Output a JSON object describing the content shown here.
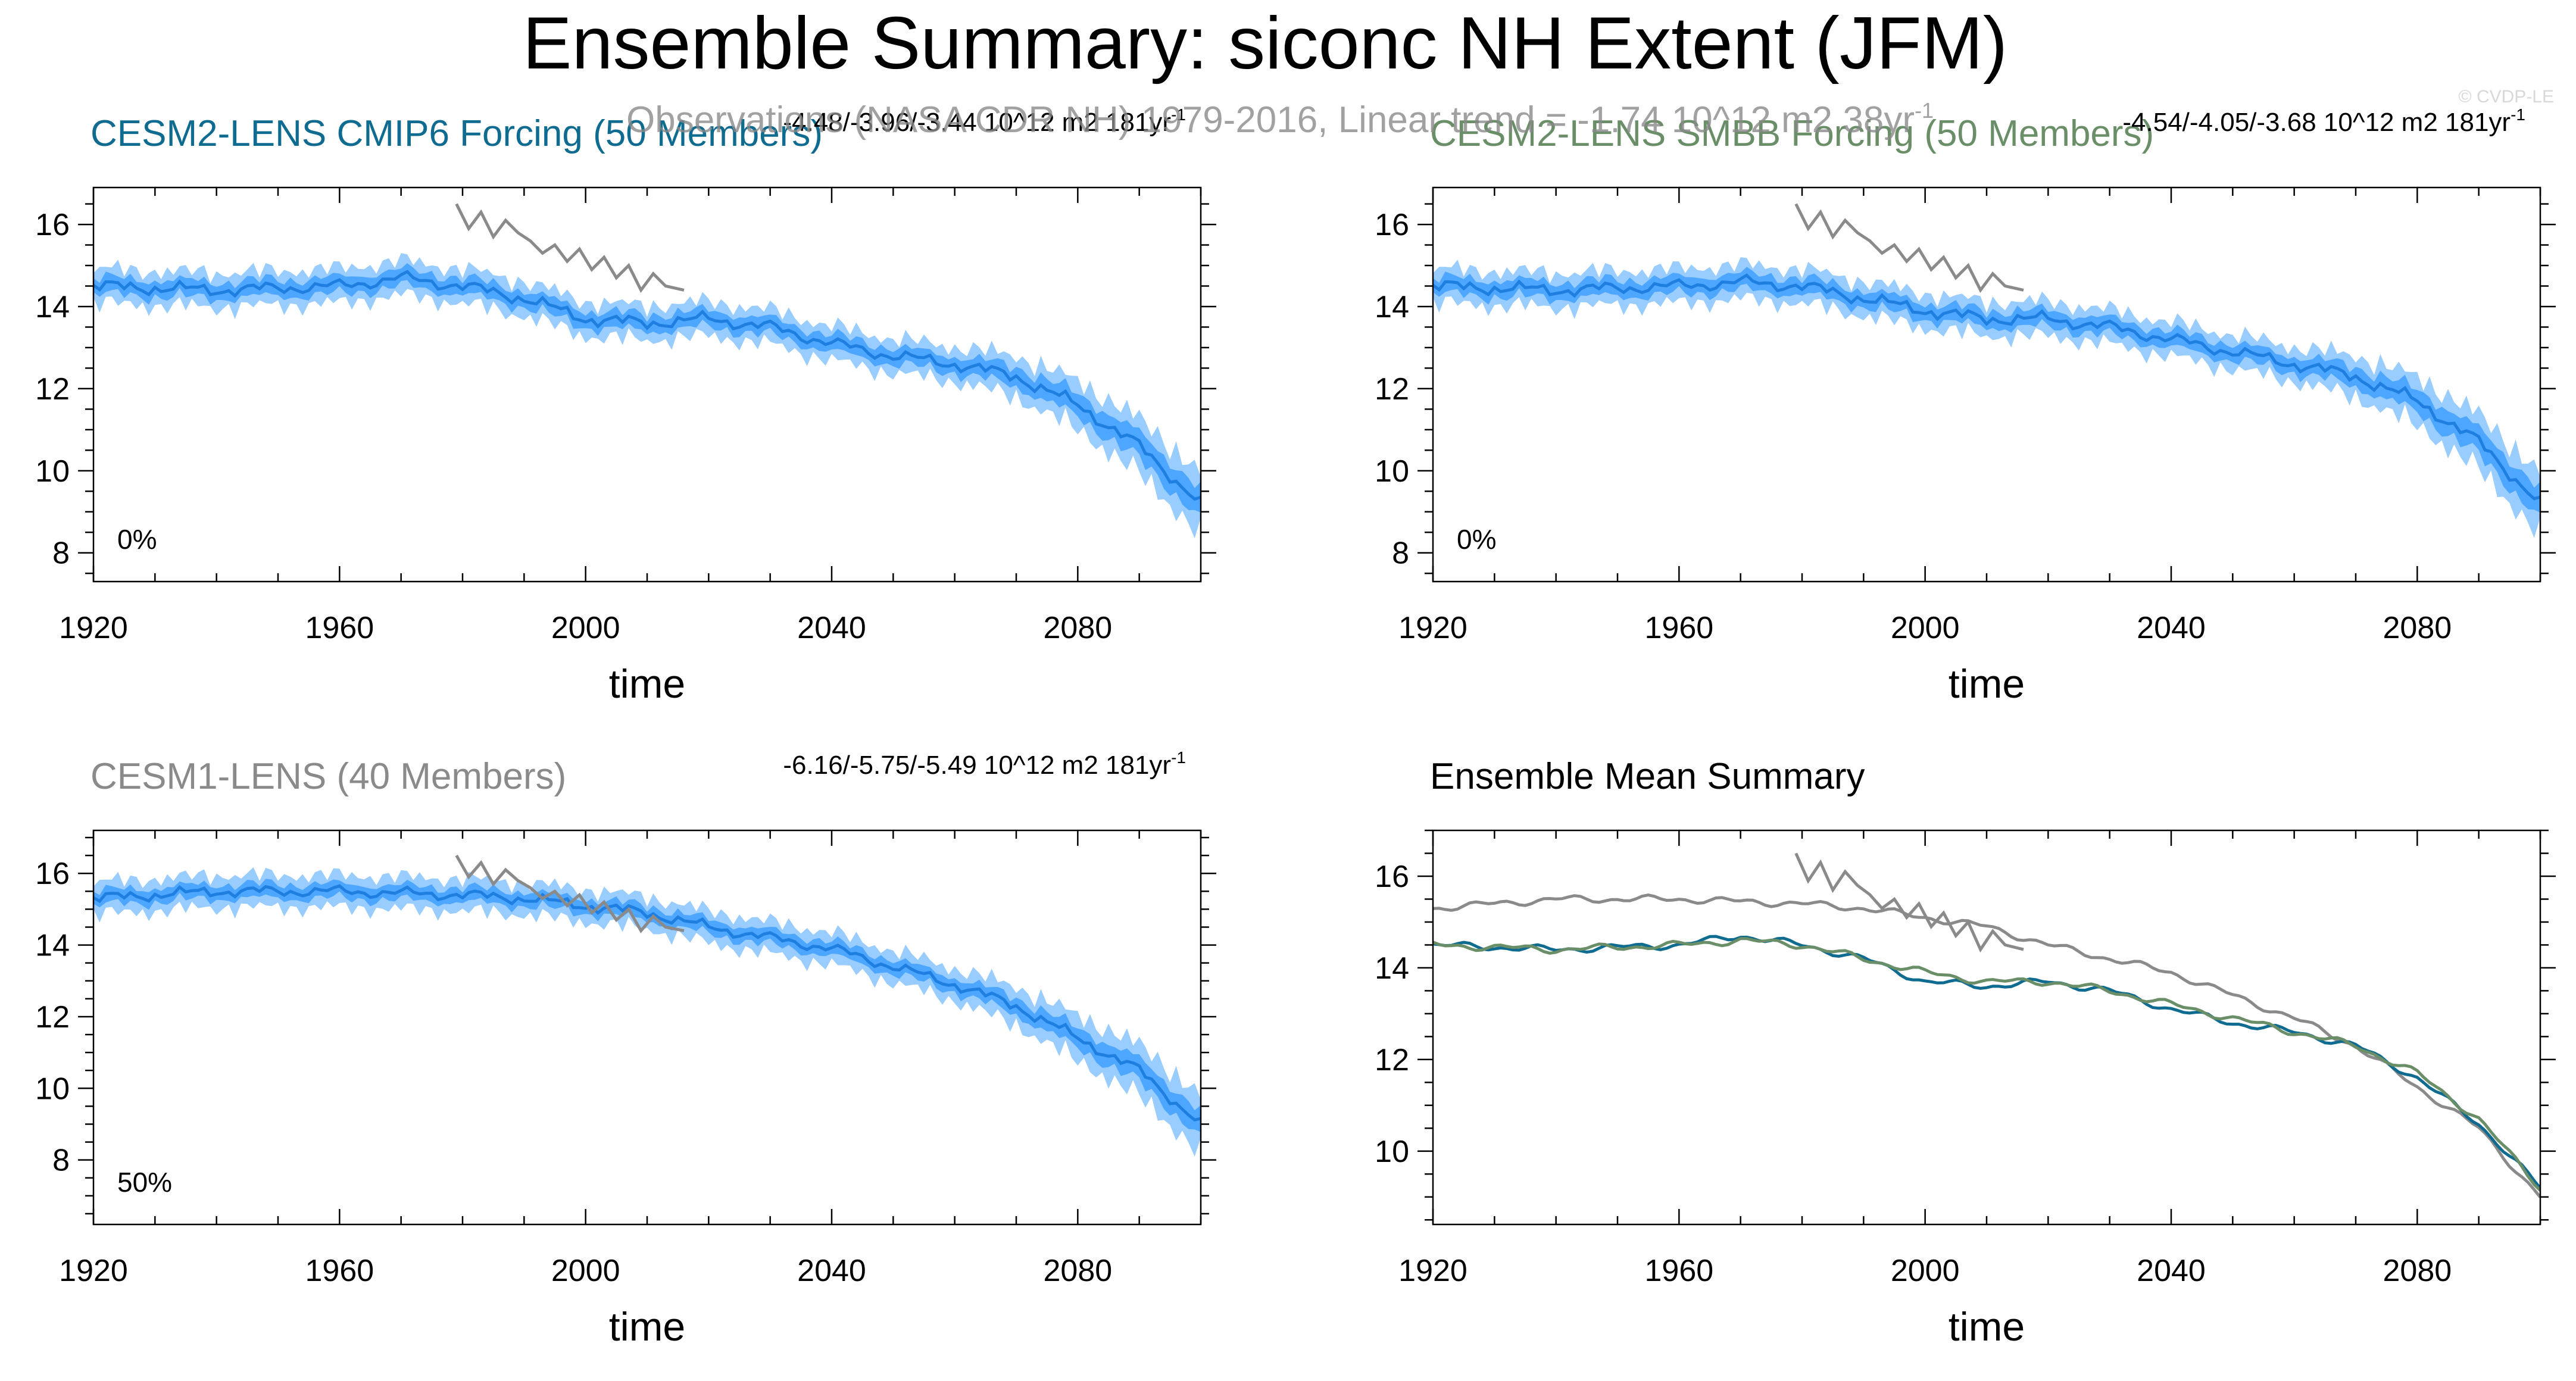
{
  "figure": {
    "title": "Ensemble Summary: siconc NH Extent (JFM)",
    "copyright": "© CVDP-LE",
    "obs_overlay": "Observations (NASA CDR NH) 1979-2016, Linear trend = -1.74 10^12 m2 38yr",
    "obs_overlay_sup": "-1"
  },
  "colors": {
    "cesm2_cmip6": "#0f6b8f",
    "cesm2_smbb": "#6a8f68",
    "cesm1": "#8a8a8a",
    "obs": "#8a8a8a",
    "band_outer": "#99ccff",
    "band_inner": "#4da6ff",
    "mean_line": "#1e7fe0"
  },
  "chart_data": [
    {
      "id": "p1",
      "type": "line",
      "subtitle": "CESM2-LENS CMIP6 Forcing (50 Members)",
      "subtitle_color": "#0f6b8f",
      "trend_text": "-4.48/-3.96/-3.44 10^12 m2 181yr",
      "trend_sup": "-1",
      "xlabel": "time",
      "ylabel": "",
      "x_ticks": [
        1920,
        1960,
        2000,
        2040,
        2080
      ],
      "y_ticks": [
        8,
        10,
        12,
        14,
        16
      ],
      "xlim": [
        1920,
        2100
      ],
      "ylim": [
        7.3,
        16.9
      ],
      "percent_label": "0%",
      "series": [
        {
          "name": "ensemble mean",
          "x": [
            1920,
            1940,
            1960,
            1970,
            1980,
            1990,
            2000,
            2010,
            2020,
            2030,
            2040,
            2050,
            2060,
            2070,
            2080,
            2090,
            2100
          ],
          "values": [
            14.5,
            14.4,
            14.5,
            14.7,
            14.5,
            14.2,
            13.7,
            13.6,
            13.7,
            13.5,
            13.1,
            12.8,
            12.6,
            12.3,
            11.6,
            10.6,
            9.2
          ]
        },
        {
          "name": "observations",
          "x": [
            1979,
            1981,
            1983,
            1985,
            1987,
            1989,
            1991,
            1993,
            1995,
            1997,
            1999,
            2001,
            2003,
            2005,
            2007,
            2009,
            2011,
            2013,
            2016
          ],
          "values": [
            16.5,
            15.9,
            16.3,
            15.7,
            16.1,
            15.8,
            15.6,
            15.3,
            15.5,
            15.1,
            15.4,
            14.9,
            15.2,
            14.7,
            15.0,
            14.4,
            14.8,
            14.5,
            14.4
          ]
        }
      ],
      "spread": {
        "outer": 0.42,
        "inner": 0.2,
        "end_widen": 1.4
      }
    },
    {
      "id": "p2",
      "type": "line",
      "subtitle": "CESM2-LENS SMBB Forcing (50 Members)",
      "subtitle_color": "#6a8f68",
      "trend_text": "-4.54/-4.05/-3.68 10^12 m2 181yr",
      "trend_sup": "-1",
      "xlabel": "time",
      "ylabel": "",
      "x_ticks": [
        1920,
        1960,
        2000,
        2040,
        2080
      ],
      "y_ticks": [
        8,
        10,
        12,
        14,
        16
      ],
      "xlim": [
        1920,
        2100
      ],
      "ylim": [
        7.3,
        16.9
      ],
      "percent_label": "0%",
      "series": [
        {
          "name": "ensemble mean",
          "x": [
            1920,
            1940,
            1960,
            1970,
            1980,
            1990,
            2000,
            2010,
            2020,
            2030,
            2040,
            2050,
            2060,
            2070,
            2080,
            2090,
            2100
          ],
          "values": [
            14.5,
            14.4,
            14.5,
            14.6,
            14.5,
            14.2,
            13.9,
            13.7,
            13.7,
            13.5,
            13.2,
            12.9,
            12.6,
            12.3,
            11.7,
            10.7,
            9.2
          ]
        },
        {
          "name": "observations",
          "x": [
            1979,
            1981,
            1983,
            1985,
            1987,
            1989,
            1991,
            1993,
            1995,
            1997,
            1999,
            2001,
            2003,
            2005,
            2007,
            2009,
            2011,
            2013,
            2016
          ],
          "values": [
            16.5,
            15.9,
            16.3,
            15.7,
            16.1,
            15.8,
            15.6,
            15.3,
            15.5,
            15.1,
            15.4,
            14.9,
            15.2,
            14.7,
            15.0,
            14.4,
            14.8,
            14.5,
            14.4
          ]
        }
      ],
      "spread": {
        "outer": 0.42,
        "inner": 0.2,
        "end_widen": 1.4
      }
    },
    {
      "id": "p3",
      "type": "line",
      "subtitle": "CESM1-LENS (40 Members)",
      "subtitle_color": "#8a8a8a",
      "trend_text": "-6.16/-5.75/-5.49 10^12 m2 181yr",
      "trend_sup": "-1",
      "xlabel": "time",
      "ylabel": "",
      "x_ticks": [
        1920,
        1960,
        2000,
        2040,
        2080
      ],
      "y_ticks": [
        8,
        10,
        12,
        14,
        16
      ],
      "xlim": [
        1920,
        2100
      ],
      "ylim": [
        6.2,
        17.2
      ],
      "percent_label": "50%",
      "series": [
        {
          "name": "ensemble mean",
          "x": [
            1920,
            1940,
            1960,
            1980,
            1990,
            2000,
            2010,
            2020,
            2030,
            2040,
            2050,
            2060,
            2070,
            2080,
            2090,
            2100
          ],
          "values": [
            15.3,
            15.5,
            15.5,
            15.4,
            15.3,
            15.1,
            14.9,
            14.5,
            14.2,
            13.9,
            13.4,
            12.9,
            12.3,
            11.4,
            10.5,
            9.0
          ]
        },
        {
          "name": "observations",
          "x": [
            1979,
            1981,
            1983,
            1985,
            1987,
            1989,
            1991,
            1993,
            1995,
            1997,
            1999,
            2001,
            2003,
            2005,
            2007,
            2009,
            2011,
            2013,
            2016
          ],
          "values": [
            16.5,
            15.9,
            16.3,
            15.7,
            16.1,
            15.8,
            15.6,
            15.3,
            15.5,
            15.1,
            15.4,
            14.9,
            15.2,
            14.7,
            15.0,
            14.4,
            14.8,
            14.5,
            14.4
          ]
        }
      ],
      "spread": {
        "outer": 0.45,
        "inner": 0.2,
        "end_widen": 1.4
      }
    },
    {
      "id": "p4",
      "type": "line",
      "subtitle": "Ensemble Mean Summary",
      "subtitle_color": "#000000",
      "trend_text": "",
      "trend_sup": "",
      "xlabel": "time",
      "ylabel": "",
      "x_ticks": [
        1920,
        1960,
        2000,
        2040,
        2080
      ],
      "y_ticks": [
        10,
        12,
        14,
        16
      ],
      "xlim": [
        1920,
        2100
      ],
      "ylim": [
        8.4,
        17.0
      ],
      "percent_label": "",
      "series": [
        {
          "name": "CESM1-LENS",
          "color": "#8a8a8a",
          "x": [
            1920,
            1940,
            1960,
            1980,
            1990,
            2000,
            2010,
            2020,
            2030,
            2040,
            2050,
            2060,
            2070,
            2080,
            2090,
            2100
          ],
          "values": [
            15.3,
            15.5,
            15.5,
            15.4,
            15.3,
            15.1,
            14.9,
            14.5,
            14.2,
            13.9,
            13.4,
            12.9,
            12.3,
            11.4,
            10.5,
            9.0
          ]
        },
        {
          "name": "CESM2-LENS CMIP6 Forcing",
          "color": "#0f6b8f",
          "x": [
            1920,
            1940,
            1960,
            1970,
            1980,
            1990,
            2000,
            2010,
            2020,
            2030,
            2040,
            2050,
            2060,
            2070,
            2080,
            2090,
            2100
          ],
          "values": [
            14.5,
            14.4,
            14.5,
            14.7,
            14.5,
            14.2,
            13.7,
            13.6,
            13.7,
            13.5,
            13.1,
            12.8,
            12.6,
            12.3,
            11.6,
            10.6,
            9.2
          ]
        },
        {
          "name": "CESM2-LENS SMBB Forcing",
          "color": "#6a8f68",
          "x": [
            1920,
            1940,
            1960,
            1970,
            1980,
            1990,
            2000,
            2010,
            2020,
            2030,
            2040,
            2050,
            2060,
            2070,
            2080,
            2090,
            2100
          ],
          "values": [
            14.5,
            14.4,
            14.5,
            14.6,
            14.5,
            14.2,
            13.9,
            13.7,
            13.7,
            13.5,
            13.2,
            12.9,
            12.6,
            12.3,
            11.7,
            10.7,
            9.2
          ]
        },
        {
          "name": "observations",
          "color": "#8a8a8a",
          "x": [
            1979,
            1981,
            1983,
            1985,
            1987,
            1989,
            1991,
            1993,
            1995,
            1997,
            1999,
            2001,
            2003,
            2005,
            2007,
            2009,
            2011,
            2013,
            2016
          ],
          "values": [
            16.5,
            15.9,
            16.3,
            15.7,
            16.1,
            15.8,
            15.6,
            15.3,
            15.5,
            15.1,
            15.4,
            14.9,
            15.2,
            14.7,
            15.0,
            14.4,
            14.8,
            14.5,
            14.4
          ]
        }
      ]
    }
  ]
}
